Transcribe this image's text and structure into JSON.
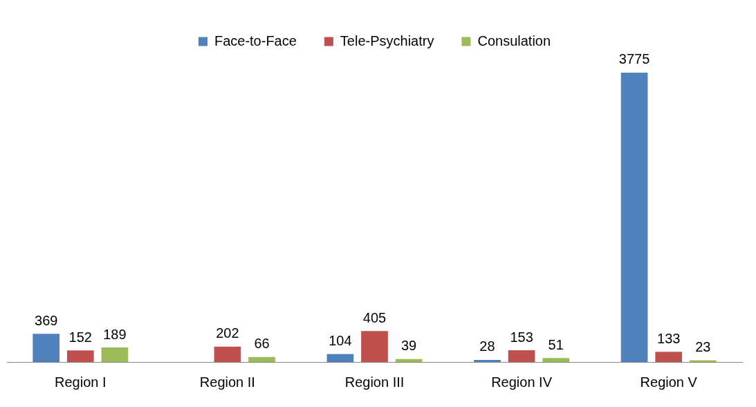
{
  "chart_data": {
    "type": "bar",
    "categories": [
      "Region I",
      "Region II",
      "Region III",
      "Region IV",
      "Region V"
    ],
    "series": [
      {
        "name": "Face-to-Face",
        "color": "#4f81bd",
        "values": [
          369,
          null,
          104,
          28,
          3775
        ]
      },
      {
        "name": "Tele-Psychiatry",
        "color": "#c0504d",
        "values": [
          152,
          202,
          405,
          153,
          133
        ]
      },
      {
        "name": "Consulation",
        "color": "#9bbb59",
        "values": [
          189,
          66,
          39,
          51,
          23
        ]
      }
    ],
    "data_labels": true,
    "legend": "top",
    "grid": false
  }
}
